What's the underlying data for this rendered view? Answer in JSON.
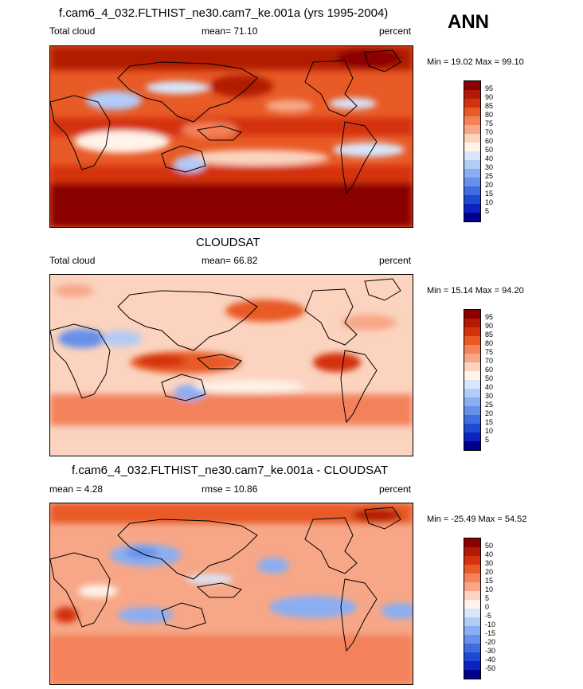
{
  "header": {
    "season": "ANN"
  },
  "panels": [
    {
      "title": "f.cam6_4_032.FLTHIST_ne30.cam7_ke.001a (yrs 1995-2004)",
      "left_label": "Total cloud",
      "center_label": "mean=  71.10",
      "right_label": "percent",
      "minmax": "Min =  19.02 Max =  99.10",
      "levels": [
        "95",
        "90",
        "85",
        "80",
        "75",
        "70",
        "60",
        "50",
        "40",
        "30",
        "25",
        "20",
        "15",
        "10",
        "5"
      ],
      "colors": [
        "#8b0000",
        "#b11b05",
        "#d4320d",
        "#e85a26",
        "#f3825a",
        "#f7a787",
        "#fbd3bf",
        "#fff3ea",
        "#d8e6fb",
        "#b2cbf7",
        "#8aaef1",
        "#6690ea",
        "#3f6de0",
        "#1f48d3",
        "#0c23c2",
        "#00008b"
      ]
    },
    {
      "title": "CLOUDSAT",
      "left_label": "Total cloud",
      "center_label": "mean=  66.82",
      "right_label": "percent",
      "minmax": "Min =  15.14 Max =  94.20",
      "levels": [
        "95",
        "90",
        "85",
        "80",
        "75",
        "70",
        "60",
        "50",
        "40",
        "30",
        "25",
        "20",
        "15",
        "10",
        "5"
      ],
      "colors": [
        "#8b0000",
        "#b11b05",
        "#d4320d",
        "#e85a26",
        "#f3825a",
        "#f7a787",
        "#fbd3bf",
        "#fff3ea",
        "#d8e6fb",
        "#b2cbf7",
        "#8aaef1",
        "#6690ea",
        "#3f6de0",
        "#1f48d3",
        "#0c23c2",
        "#00008b"
      ]
    },
    {
      "title": "f.cam6_4_032.FLTHIST_ne30.cam7_ke.001a - CLOUDSAT",
      "left_label": "mean =   4.28",
      "center_label": "rmse =  10.86",
      "right_label": "percent",
      "minmax": "Min = -25.49 Max =  54.52",
      "levels": [
        "50",
        "40",
        "30",
        "20",
        "15",
        "10",
        "5",
        "0",
        "-5",
        "-10",
        "-15",
        "-20",
        "-30",
        "-40",
        "-50"
      ],
      "colors": [
        "#8b0000",
        "#b11b05",
        "#d4320d",
        "#e85a26",
        "#f3825a",
        "#f7a787",
        "#fbd3bf",
        "#fff3ea",
        "#d8e6fb",
        "#b2cbf7",
        "#8aaef1",
        "#6690ea",
        "#3f6de0",
        "#1f48d3",
        "#0c23c2",
        "#00008b"
      ]
    }
  ]
}
